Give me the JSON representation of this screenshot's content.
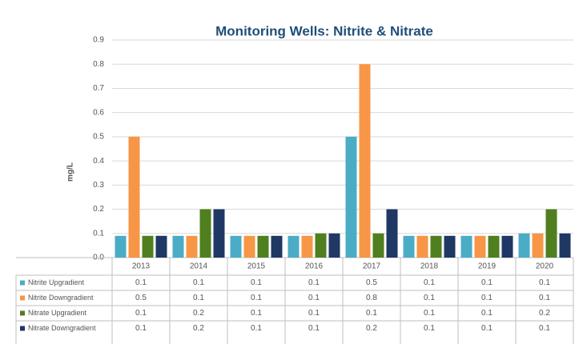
{
  "chart_data": {
    "type": "bar",
    "title": "Monitoring Wells: Nitrite & Nitrate",
    "y_label": "mg/L",
    "categories": [
      "2013",
      "2014",
      "2015",
      "2016",
      "2017",
      "2018",
      "2019",
      "2020"
    ],
    "series": [
      {
        "name": "Nitrite Upgradient",
        "color": "#4bacc6",
        "values": [
          0.09,
          0.09,
          0.09,
          0.09,
          0.5,
          0.09,
          0.09,
          0.1
        ],
        "value_labels": [
          "0.1",
          "0.1",
          "0.1",
          "0.1",
          "0.5",
          "0.1",
          "0.1",
          "0.1"
        ]
      },
      {
        "name": "Nitrite Downgradient",
        "color": "#f79646",
        "values": [
          0.5,
          0.09,
          0.09,
          0.09,
          0.8,
          0.09,
          0.09,
          0.1
        ],
        "value_labels": [
          "0.5",
          "0.1",
          "0.1",
          "0.1",
          "0.8",
          "0.1",
          "0.1",
          "0.1"
        ]
      },
      {
        "name": "Nitrate Upgradient",
        "color": "#4f7f1f",
        "values": [
          0.09,
          0.2,
          0.09,
          0.1,
          0.1,
          0.09,
          0.09,
          0.2
        ],
        "value_labels": [
          "0.1",
          "0.2",
          "0.1",
          "0.1",
          "0.1",
          "0.1",
          "0.1",
          "0.2"
        ]
      },
      {
        "name": "Nitrate Downgradient",
        "color": "#1f3864",
        "values": [
          0.09,
          0.2,
          0.09,
          0.1,
          0.2,
          0.09,
          0.09,
          0.1
        ],
        "value_labels": [
          "0.1",
          "0.2",
          "0.1",
          "0.1",
          "0.2",
          "0.1",
          "0.1",
          "0.1"
        ]
      }
    ],
    "ylim": [
      0,
      0.9
    ],
    "yticks": [
      {
        "value": 0,
        "label": "0.0"
      },
      0.1,
      0.2,
      0.3,
      0.4,
      0.5,
      0.6,
      0.7,
      0.8,
      0.9
    ],
    "grid": true
  }
}
